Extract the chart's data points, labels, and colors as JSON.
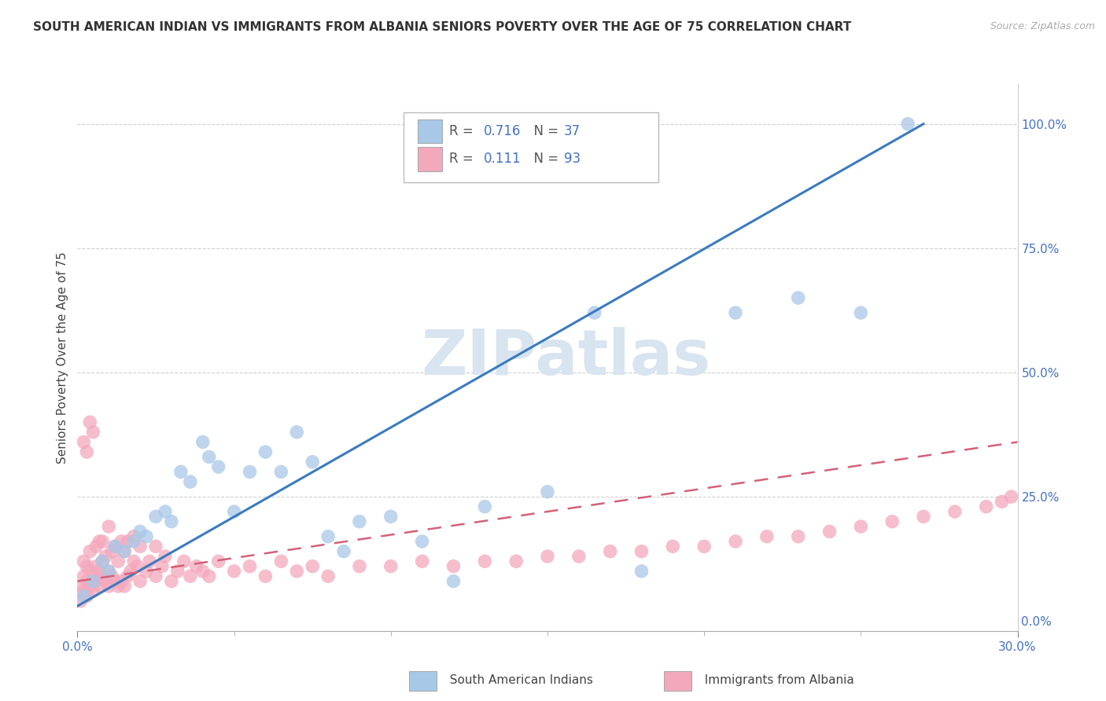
{
  "title": "SOUTH AMERICAN INDIAN VS IMMIGRANTS FROM ALBANIA SENIORS POVERTY OVER THE AGE OF 75 CORRELATION CHART",
  "source": "Source: ZipAtlas.com",
  "ylabel": "Seniors Poverty Over the Age of 75",
  "xlim": [
    0.0,
    0.3
  ],
  "ylim": [
    -0.02,
    1.08
  ],
  "blue_R": "0.716",
  "blue_N": "37",
  "pink_R": "0.111",
  "pink_N": "93",
  "blue_color": "#a8c8e8",
  "pink_color": "#f4a8bc",
  "blue_line_color": "#3a7bbf",
  "pink_line_color": "#d4607a",
  "background_color": "#ffffff",
  "grid_color": "#d0d0d0",
  "watermark_color": "#d8e4f0",
  "ytick_color": "#5090d0",
  "blue_scatter_x": [
    0.002,
    0.005,
    0.008,
    0.01,
    0.012,
    0.015,
    0.018,
    0.02,
    0.022,
    0.025,
    0.028,
    0.03,
    0.033,
    0.036,
    0.04,
    0.042,
    0.045,
    0.05,
    0.055,
    0.06,
    0.065,
    0.07,
    0.075,
    0.08,
    0.085,
    0.09,
    0.1,
    0.11,
    0.12,
    0.13,
    0.15,
    0.165,
    0.18,
    0.21,
    0.23,
    0.25,
    0.265
  ],
  "blue_scatter_y": [
    0.05,
    0.08,
    0.12,
    0.1,
    0.15,
    0.14,
    0.16,
    0.18,
    0.17,
    0.21,
    0.22,
    0.2,
    0.3,
    0.28,
    0.36,
    0.33,
    0.31,
    0.22,
    0.3,
    0.34,
    0.3,
    0.38,
    0.32,
    0.17,
    0.14,
    0.2,
    0.21,
    0.16,
    0.08,
    0.23,
    0.26,
    0.62,
    0.1,
    0.62,
    0.65,
    0.62,
    1.0
  ],
  "pink_scatter_x": [
    0.001,
    0.001,
    0.002,
    0.002,
    0.002,
    0.003,
    0.003,
    0.003,
    0.004,
    0.004,
    0.004,
    0.005,
    0.005,
    0.005,
    0.006,
    0.006,
    0.006,
    0.007,
    0.007,
    0.007,
    0.008,
    0.008,
    0.008,
    0.009,
    0.009,
    0.01,
    0.01,
    0.01,
    0.011,
    0.011,
    0.012,
    0.012,
    0.013,
    0.013,
    0.014,
    0.014,
    0.015,
    0.015,
    0.016,
    0.016,
    0.017,
    0.018,
    0.018,
    0.019,
    0.02,
    0.02,
    0.022,
    0.023,
    0.025,
    0.025,
    0.027,
    0.028,
    0.03,
    0.032,
    0.034,
    0.036,
    0.038,
    0.04,
    0.042,
    0.045,
    0.05,
    0.055,
    0.06,
    0.065,
    0.07,
    0.075,
    0.08,
    0.09,
    0.1,
    0.11,
    0.12,
    0.13,
    0.14,
    0.15,
    0.16,
    0.17,
    0.18,
    0.19,
    0.2,
    0.21,
    0.22,
    0.23,
    0.24,
    0.25,
    0.26,
    0.27,
    0.28,
    0.29,
    0.295,
    0.298,
    0.002,
    0.003,
    0.004
  ],
  "pink_scatter_y": [
    0.04,
    0.07,
    0.06,
    0.09,
    0.12,
    0.05,
    0.08,
    0.11,
    0.07,
    0.1,
    0.14,
    0.06,
    0.09,
    0.38,
    0.08,
    0.11,
    0.15,
    0.07,
    0.1,
    0.16,
    0.09,
    0.12,
    0.16,
    0.08,
    0.13,
    0.07,
    0.1,
    0.19,
    0.09,
    0.14,
    0.08,
    0.15,
    0.07,
    0.12,
    0.08,
    0.16,
    0.07,
    0.14,
    0.09,
    0.16,
    0.1,
    0.12,
    0.17,
    0.11,
    0.08,
    0.15,
    0.1,
    0.12,
    0.09,
    0.15,
    0.11,
    0.13,
    0.08,
    0.1,
    0.12,
    0.09,
    0.11,
    0.1,
    0.09,
    0.12,
    0.1,
    0.11,
    0.09,
    0.12,
    0.1,
    0.11,
    0.09,
    0.11,
    0.11,
    0.12,
    0.11,
    0.12,
    0.12,
    0.13,
    0.13,
    0.14,
    0.14,
    0.15,
    0.15,
    0.16,
    0.17,
    0.17,
    0.18,
    0.19,
    0.2,
    0.21,
    0.22,
    0.23,
    0.24,
    0.25,
    0.36,
    0.34,
    0.4
  ],
  "blue_line_x": [
    0.0,
    0.27
  ],
  "blue_line_y": [
    0.03,
    1.0
  ],
  "pink_line_x": [
    0.0,
    0.3
  ],
  "pink_line_y": [
    0.08,
    0.36
  ],
  "legend_bottom_labels": [
    "South American Indians",
    "Immigrants from Albania"
  ]
}
